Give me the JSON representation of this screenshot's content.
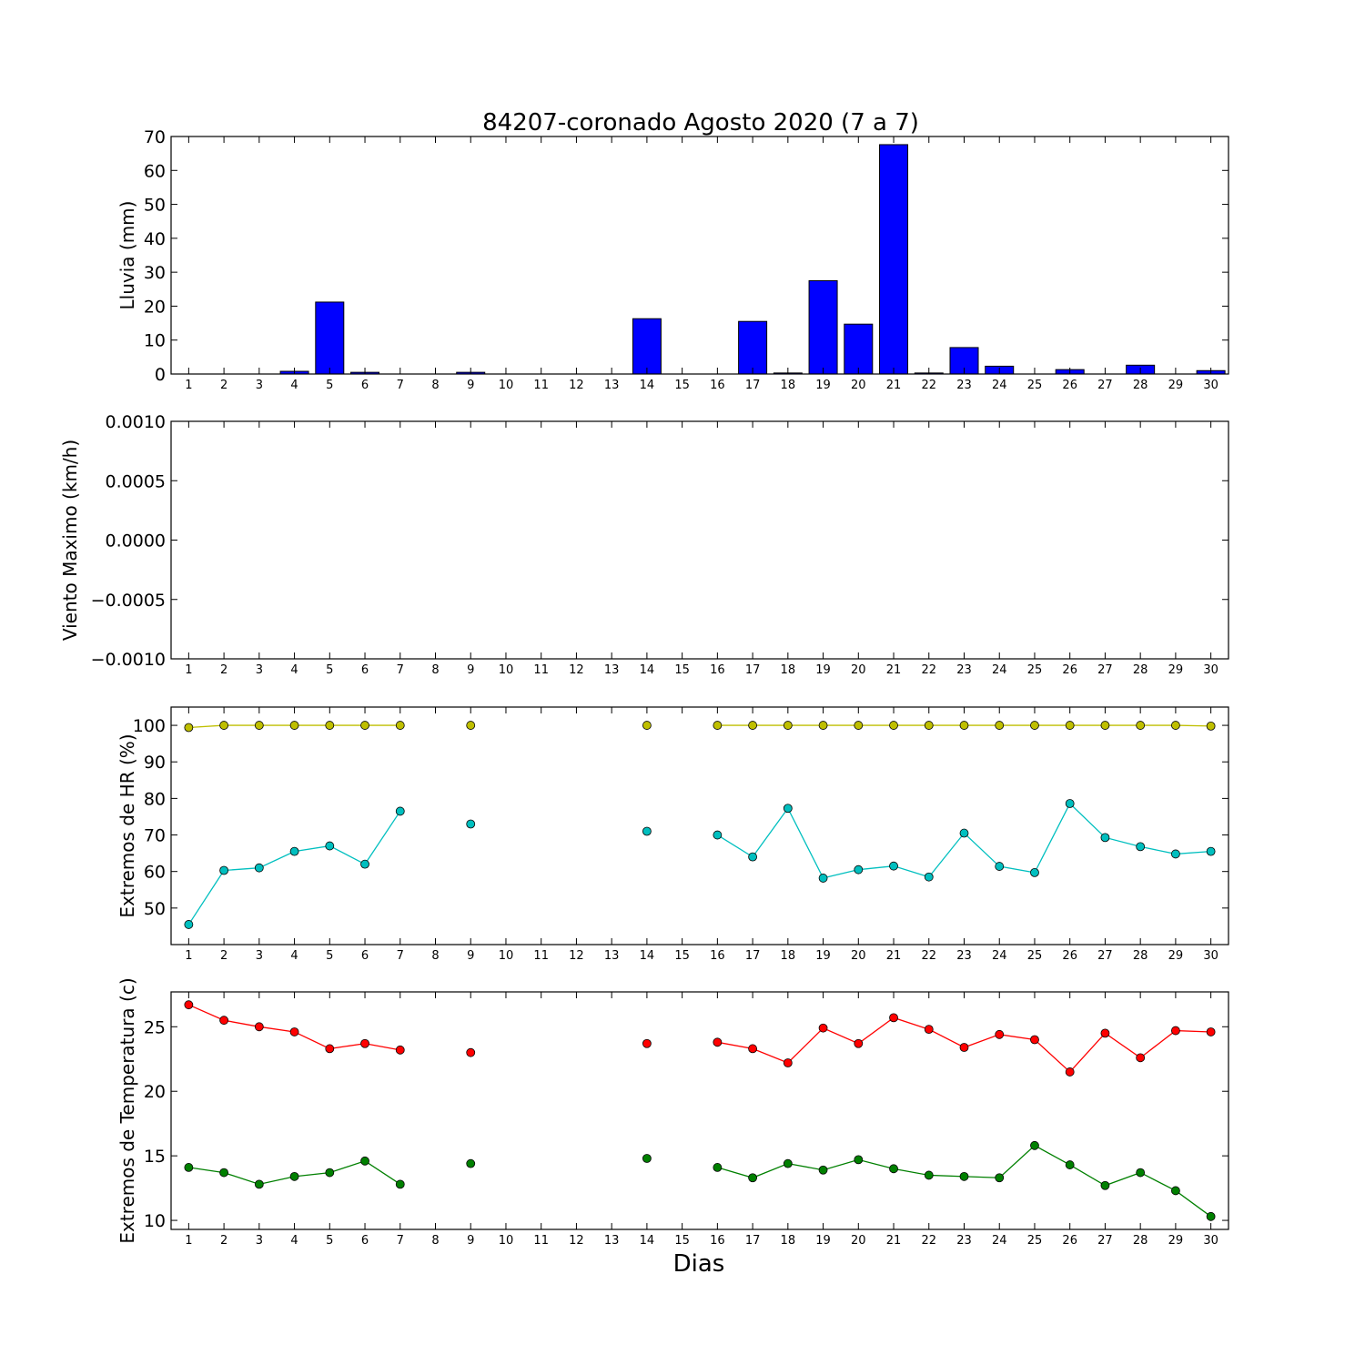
{
  "title": "84207-coronado Agosto 2020  (7 a 7)",
  "xlabel": "Dias",
  "colors": {
    "bar": "#0000ff",
    "hr_max": "#bfbf00",
    "hr_min": "#00bfbf",
    "temp_max": "#ff0000",
    "temp_min": "#008000"
  },
  "chart_data": [
    {
      "type": "bar",
      "ylabel": "Lluvia (mm)",
      "ylim": [
        0,
        70
      ],
      "yticks": [
        "0",
        "10",
        "20",
        "30",
        "40",
        "50",
        "60",
        "70"
      ],
      "categories": [
        "1",
        "2",
        "3",
        "4",
        "5",
        "6",
        "7",
        "8",
        "9",
        "10",
        "11",
        "12",
        "13",
        "14",
        "15",
        "16",
        "17",
        "18",
        "19",
        "20",
        "21",
        "22",
        "23",
        "24",
        "25",
        "26",
        "27",
        "28",
        "29",
        "30"
      ],
      "values": [
        0,
        0,
        0,
        0.8,
        21.2,
        0.5,
        0,
        0,
        0.5,
        0,
        0,
        0,
        0,
        16.3,
        0,
        0,
        15.5,
        0.3,
        27.5,
        14.7,
        67.6,
        0.3,
        7.8,
        2.3,
        0,
        1.3,
        0,
        2.6,
        0,
        1.0
      ],
      "grid": false
    },
    {
      "type": "line",
      "ylabel": "Viento Maximo (km/h)",
      "ylim": [
        -0.001,
        0.001
      ],
      "yticks": [
        "0.0010",
        "0.0005",
        "0.0000",
        "−0.0005",
        "−0.0010"
      ],
      "categories": [
        "1",
        "2",
        "3",
        "4",
        "5",
        "6",
        "7",
        "8",
        "9",
        "10",
        "11",
        "12",
        "13",
        "14",
        "15",
        "16",
        "17",
        "18",
        "19",
        "20",
        "21",
        "22",
        "23",
        "24",
        "25",
        "26",
        "27",
        "28",
        "29",
        "30"
      ],
      "series": [],
      "grid": false
    },
    {
      "type": "line",
      "ylabel": "Extremos de HR (%)",
      "ylim": [
        40,
        105
      ],
      "yticks": [
        "50",
        "60",
        "70",
        "80",
        "90",
        "100"
      ],
      "categories": [
        "1",
        "2",
        "3",
        "4",
        "5",
        "6",
        "7",
        "8",
        "9",
        "10",
        "11",
        "12",
        "13",
        "14",
        "15",
        "16",
        "17",
        "18",
        "19",
        "20",
        "21",
        "22",
        "23",
        "24",
        "25",
        "26",
        "27",
        "28",
        "29",
        "30"
      ],
      "series": [
        {
          "values": [
            99.4,
            100,
            100,
            100,
            100,
            100,
            100,
            null,
            100,
            null,
            null,
            null,
            null,
            100,
            null,
            100,
            100,
            100,
            100,
            100,
            100,
            100,
            100,
            100,
            100,
            100,
            100,
            100,
            100,
            99.8
          ]
        },
        {
          "values": [
            45.5,
            60.3,
            61,
            65.5,
            67,
            62,
            76.5,
            null,
            73,
            null,
            null,
            null,
            null,
            71,
            null,
            70,
            64,
            77.3,
            58.2,
            60.5,
            61.5,
            58.5,
            70.5,
            61.4,
            59.7,
            78.6,
            69.3,
            66.8,
            64.8,
            65.5
          ]
        }
      ],
      "grid": false
    },
    {
      "type": "line",
      "ylabel": "Extremos de Temperatura (c)",
      "ylim": [
        9.3,
        27.7
      ],
      "yticks": [
        "10",
        "15",
        "20",
        "25"
      ],
      "categories": [
        "1",
        "2",
        "3",
        "4",
        "5",
        "6",
        "7",
        "8",
        "9",
        "10",
        "11",
        "12",
        "13",
        "14",
        "15",
        "16",
        "17",
        "18",
        "19",
        "20",
        "21",
        "22",
        "23",
        "24",
        "25",
        "26",
        "27",
        "28",
        "29",
        "30"
      ],
      "series": [
        {
          "values": [
            26.7,
            25.5,
            25,
            24.6,
            23.3,
            23.7,
            23.2,
            null,
            23,
            null,
            null,
            null,
            null,
            23.7,
            null,
            23.8,
            23.3,
            22.2,
            24.9,
            23.7,
            25.7,
            24.8,
            23.4,
            24.4,
            24,
            21.5,
            24.5,
            22.6,
            24.7,
            24.6
          ]
        },
        {
          "values": [
            14.1,
            13.7,
            12.8,
            13.4,
            13.7,
            14.6,
            12.8,
            null,
            14.4,
            null,
            null,
            null,
            null,
            14.8,
            null,
            14.1,
            13.3,
            14.4,
            13.9,
            14.7,
            14,
            13.5,
            13.4,
            13.3,
            15.8,
            14.3,
            12.7,
            13.7,
            12.3,
            10.3
          ]
        }
      ],
      "grid": false
    }
  ]
}
